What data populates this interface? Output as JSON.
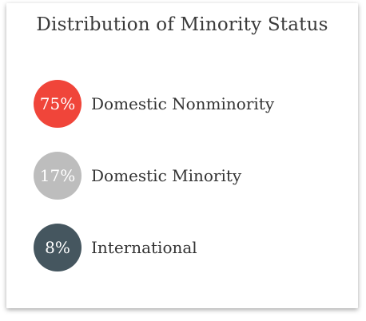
{
  "chart_data": {
    "type": "pie",
    "title": "Distribution of Minority Status",
    "unit": "%",
    "legend_placement": "left",
    "slices": [
      {
        "label": "Domestic Nonminority",
        "value": 75,
        "display": "75%",
        "color": "#f0453a"
      },
      {
        "label": "Domestic Minority",
        "value": 17,
        "display": "17%",
        "color": "#bdbdbd"
      },
      {
        "label": "International",
        "value": 8,
        "display": "8%",
        "color": "#45565f"
      }
    ]
  }
}
